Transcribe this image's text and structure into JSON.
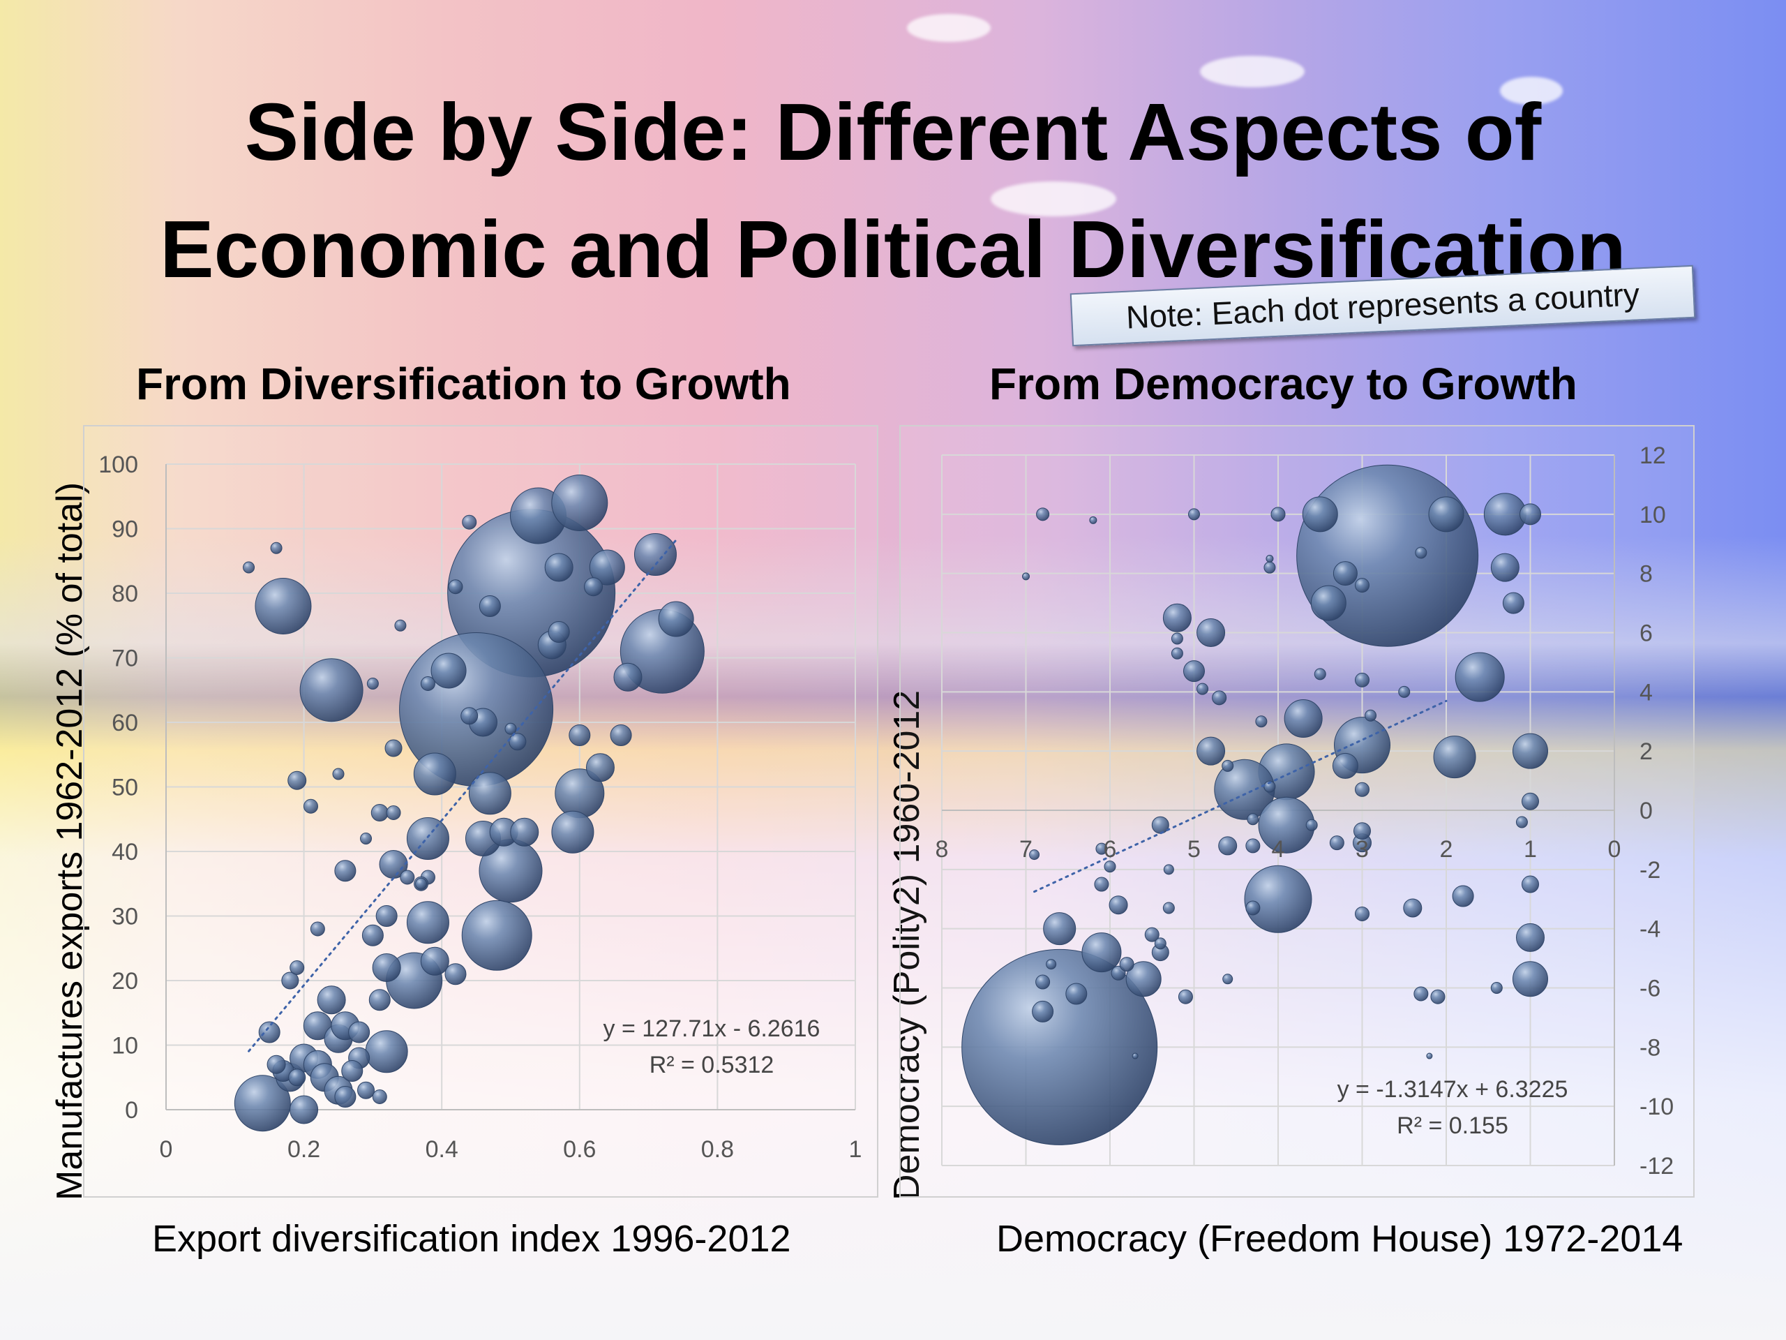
{
  "slide": {
    "title_line1": "Side by Side: Different Aspects of",
    "title_line2": "Economic and Political Diversification",
    "note": "Note: Each dot represents a country"
  },
  "colors": {
    "bubble": "#4f6b93",
    "bubble_edge": "#2f4568",
    "grid": "#d8d8d8",
    "trend": "#3e63a8"
  },
  "chart_data": [
    {
      "type": "scatter",
      "subtitle": "From Diversification to Growth",
      "xlabel": "Export diversification index 1996-2012",
      "ylabel": "Manufactures exports 1962-2012 (% of total)",
      "xlim": [
        0,
        1
      ],
      "ylim": [
        0,
        100
      ],
      "xticks": [
        "0",
        "0.2",
        "0.4",
        "0.6",
        "0.8",
        "1"
      ],
      "yticks": [
        "0",
        "10",
        "20",
        "30",
        "40",
        "50",
        "60",
        "70",
        "80",
        "90",
        "100"
      ],
      "trendline": {
        "slope": 127.71,
        "intercept": -6.2616,
        "x_range": [
          0.12,
          0.74
        ]
      },
      "equation": "y = 127.71x - 6.2616",
      "r2": "R² = 0.5312",
      "points": [
        [
          0.53,
          80,
          12
        ],
        [
          0.45,
          62,
          11
        ],
        [
          0.54,
          92,
          4
        ],
        [
          0.6,
          94,
          4
        ],
        [
          0.72,
          71,
          6
        ],
        [
          0.48,
          27,
          5
        ],
        [
          0.5,
          37,
          4.5
        ],
        [
          0.6,
          49,
          3.5
        ],
        [
          0.24,
          65,
          4.5
        ],
        [
          0.17,
          78,
          4
        ],
        [
          0.71,
          86,
          3
        ],
        [
          0.74,
          76,
          2.5
        ],
        [
          0.59,
          43,
          3
        ],
        [
          0.64,
          84,
          2.5
        ],
        [
          0.57,
          84,
          2
        ],
        [
          0.56,
          72,
          2
        ],
        [
          0.67,
          67,
          2
        ],
        [
          0.63,
          53,
          2
        ],
        [
          0.66,
          58,
          1.5
        ],
        [
          0.6,
          58,
          1.5
        ],
        [
          0.36,
          20,
          4
        ],
        [
          0.32,
          9,
          3
        ],
        [
          0.38,
          42,
          3
        ],
        [
          0.38,
          29,
          3
        ],
        [
          0.39,
          23,
          2
        ],
        [
          0.46,
          42,
          2.5
        ],
        [
          0.47,
          49,
          3
        ],
        [
          0.39,
          52,
          3
        ],
        [
          0.41,
          68,
          2.5
        ],
        [
          0.46,
          60,
          2
        ],
        [
          0.49,
          43,
          2
        ],
        [
          0.52,
          43,
          2
        ],
        [
          0.14,
          1,
          4
        ],
        [
          0.2,
          0,
          2
        ],
        [
          0.18,
          5,
          2
        ],
        [
          0.2,
          8,
          2
        ],
        [
          0.22,
          13,
          2
        ],
        [
          0.22,
          7,
          2
        ],
        [
          0.23,
          5,
          2
        ],
        [
          0.25,
          11,
          2
        ],
        [
          0.25,
          3,
          2
        ],
        [
          0.26,
          2,
          1.5
        ],
        [
          0.28,
          8,
          1.5
        ],
        [
          0.26,
          13,
          2
        ],
        [
          0.24,
          17,
          2
        ],
        [
          0.28,
          12,
          1.5
        ],
        [
          0.15,
          12,
          1.5
        ],
        [
          0.17,
          6,
          1.5
        ],
        [
          0.16,
          7,
          1.3
        ],
        [
          0.19,
          5,
          1.2
        ],
        [
          0.27,
          6,
          1.5
        ],
        [
          0.29,
          3,
          1.2
        ],
        [
          0.31,
          17,
          1.5
        ],
        [
          0.32,
          22,
          2
        ],
        [
          0.33,
          38,
          2
        ],
        [
          0.3,
          27,
          1.5
        ],
        [
          0.26,
          37,
          1.5
        ],
        [
          0.31,
          46,
          1.2
        ],
        [
          0.33,
          46,
          1
        ],
        [
          0.38,
          36,
          1
        ],
        [
          0.32,
          30,
          1.5
        ],
        [
          0.35,
          36,
          1
        ],
        [
          0.37,
          35,
          1
        ],
        [
          0.42,
          21,
          1.5
        ],
        [
          0.33,
          56,
          1.2
        ],
        [
          0.19,
          51,
          1.3
        ],
        [
          0.21,
          47,
          1
        ],
        [
          0.18,
          20,
          1.2
        ],
        [
          0.19,
          22,
          1
        ],
        [
          0.22,
          28,
          1
        ],
        [
          0.31,
          2,
          1
        ],
        [
          0.37,
          35,
          0.8
        ],
        [
          0.42,
          81,
          1
        ],
        [
          0.44,
          91,
          1
        ],
        [
          0.16,
          87,
          0.8
        ],
        [
          0.12,
          84,
          0.8
        ],
        [
          0.34,
          75,
          0.8
        ],
        [
          0.38,
          66,
          1
        ],
        [
          0.47,
          78,
          1.5
        ],
        [
          0.44,
          61,
          1.2
        ],
        [
          0.51,
          57,
          1.2
        ],
        [
          0.5,
          59,
          0.8
        ],
        [
          0.57,
          74,
          1.5
        ],
        [
          0.62,
          81,
          1.3
        ],
        [
          0.3,
          66,
          0.8
        ],
        [
          0.29,
          42,
          0.8
        ],
        [
          0.25,
          52,
          0.8
        ]
      ]
    },
    {
      "type": "scatter",
      "subtitle": "From Democracy to Growth",
      "xlabel": "Democracy (Freedom House) 1972-2014",
      "ylabel": "Democracy (Polity2) 1960-2012",
      "xlim": [
        8,
        0
      ],
      "ylim": [
        -12,
        12
      ],
      "xticks": [
        "8",
        "7",
        "6",
        "5",
        "4",
        "3",
        "2",
        "1",
        "0"
      ],
      "yticks": [
        "12",
        "10",
        "8",
        "6",
        "4",
        "2",
        "0",
        "-2",
        "-4",
        "-6",
        "-8",
        "-10",
        "-12"
      ],
      "trendline": {
        "slope": -1.3147,
        "intercept": 6.3225,
        "x_range": [
          6.9,
          2.0
        ]
      },
      "equation": "y = -1.3147x + 6.3225",
      "r2": "R² = 0.155",
      "points": [
        [
          2.7,
          8.6,
          13
        ],
        [
          6.6,
          -8,
          14
        ],
        [
          1.3,
          10,
          3
        ],
        [
          2.0,
          10,
          2.5
        ],
        [
          1.0,
          10,
          1.5
        ],
        [
          3.5,
          10,
          2.5
        ],
        [
          1.3,
          8.2,
          2
        ],
        [
          1.2,
          7,
          1.5
        ],
        [
          1.6,
          4.5,
          3.5
        ],
        [
          3.0,
          2.2,
          4
        ],
        [
          1.9,
          1.8,
          3
        ],
        [
          1.0,
          2,
          2.5
        ],
        [
          3.9,
          1.3,
          4
        ],
        [
          4.4,
          0.7,
          4.3
        ],
        [
          3.9,
          -0.5,
          4
        ],
        [
          4.0,
          -3,
          4.8
        ],
        [
          3.4,
          7,
          2.5
        ],
        [
          5.2,
          6.5,
          2
        ],
        [
          4.8,
          6,
          2
        ],
        [
          3.7,
          3.1,
          2.7
        ],
        [
          4.8,
          2,
          2
        ],
        [
          3.2,
          1.5,
          1.8
        ],
        [
          4.6,
          -1.2,
          1.3
        ],
        [
          4.3,
          -1.2,
          1
        ],
        [
          3.0,
          -1.1,
          1.3
        ],
        [
          3.3,
          -1.1,
          1
        ],
        [
          3.0,
          -0.7,
          1.2
        ],
        [
          3.0,
          0.7,
          1
        ],
        [
          5.4,
          -0.5,
          1.2
        ],
        [
          6.1,
          -1.3,
          0.8
        ],
        [
          6.9,
          -1.5,
          0.7
        ],
        [
          6.6,
          -4,
          2.3
        ],
        [
          6.1,
          -4.8,
          2.8
        ],
        [
          5.6,
          -5.7,
          2.5
        ],
        [
          6.4,
          -6.2,
          1.5
        ],
        [
          6.8,
          -6.8,
          1.5
        ],
        [
          6.8,
          -5.8,
          1
        ],
        [
          5.9,
          -5.5,
          1
        ],
        [
          5.4,
          -4.8,
          1.2
        ],
        [
          5.1,
          -6.3,
          1
        ],
        [
          5.8,
          -5.2,
          1
        ],
        [
          1.0,
          -4.3,
          2
        ],
        [
          1.0,
          -5.7,
          2.5
        ],
        [
          1.0,
          -2.5,
          1.2
        ],
        [
          1.8,
          -2.9,
          1.5
        ],
        [
          2.4,
          -3.3,
          1.3
        ],
        [
          3.0,
          -3.5,
          1
        ],
        [
          2.3,
          -6.2,
          1
        ],
        [
          2.1,
          -6.3,
          1
        ],
        [
          1.4,
          -6,
          0.8
        ],
        [
          1.0,
          0.3,
          1.2
        ],
        [
          1.1,
          -0.4,
          0.8
        ],
        [
          4.2,
          3,
          0.8
        ],
        [
          4.7,
          3.8,
          1
        ],
        [
          3.5,
          4.6,
          0.8
        ],
        [
          2.9,
          3.2,
          0.8
        ],
        [
          3.0,
          4.4,
          1
        ],
        [
          2.5,
          4,
          0.8
        ],
        [
          3.2,
          8,
          1.7
        ],
        [
          3.0,
          7.6,
          1
        ],
        [
          2.3,
          8.7,
          0.8
        ],
        [
          4.0,
          10,
          1
        ],
        [
          5.0,
          10,
          0.8
        ],
        [
          6.8,
          10,
          0.9
        ],
        [
          6.2,
          9.8,
          0.5
        ],
        [
          7.0,
          7.9,
          0.5
        ],
        [
          4.1,
          8.2,
          0.8
        ],
        [
          4.1,
          8.5,
          0.5
        ],
        [
          5.2,
          5.8,
          0.8
        ],
        [
          5.0,
          4.7,
          1.5
        ],
        [
          5.2,
          5.3,
          0.8
        ],
        [
          4.9,
          4.1,
          0.8
        ],
        [
          5.3,
          -3.3,
          0.8
        ],
        [
          6.0,
          -1.9,
          0.8
        ],
        [
          6.1,
          -2.5,
          1
        ],
        [
          5.9,
          -3.2,
          1.3
        ],
        [
          5.5,
          -4.2,
          1
        ],
        [
          4.3,
          -3.3,
          1
        ],
        [
          4.6,
          -5.7,
          0.7
        ],
        [
          5.4,
          -4.5,
          0.8
        ],
        [
          4.1,
          0.8,
          0.8
        ],
        [
          4.6,
          1.5,
          0.8
        ],
        [
          4.3,
          -0.3,
          0.8
        ],
        [
          3.6,
          -0.5,
          0.8
        ],
        [
          6.7,
          -5.2,
          0.7
        ],
        [
          5.3,
          -2,
          0.7
        ],
        [
          2.2,
          -8.3,
          0.4
        ],
        [
          5.7,
          -8.3,
          0.4
        ]
      ]
    }
  ]
}
